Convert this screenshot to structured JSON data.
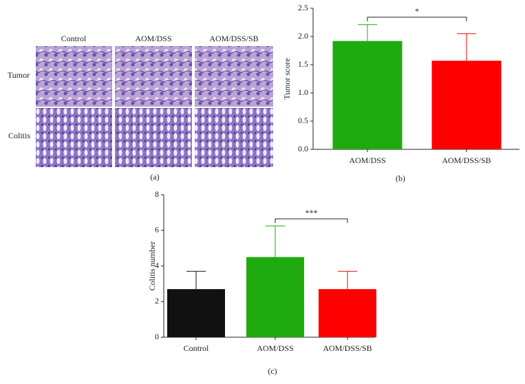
{
  "panel_a": {
    "column_labels": [
      "Control",
      "AOM/DSS",
      "AOM/DSS/SB"
    ],
    "row_labels": [
      "Tumor",
      "Colitis"
    ],
    "caption": "(a)"
  },
  "chart_data": [
    {
      "type": "bar",
      "caption": "(b)",
      "ylabel": "Tumor score",
      "categories": [
        "AOM/DSS",
        "AOM/DSS/SB"
      ],
      "values": [
        1.92,
        1.57
      ],
      "errors": [
        0.29,
        0.48
      ],
      "colors": [
        "#1fab0f",
        "#ff0000"
      ],
      "ylim": [
        0,
        2.5
      ],
      "yticks": [
        {
          "value": 0,
          "label": "0.0"
        },
        {
          "value": 0.5,
          "label": "0.5"
        },
        {
          "value": 1,
          "label": "1.0"
        },
        {
          "value": 1.5,
          "label": "1.5"
        },
        {
          "value": 2,
          "label": "2.0"
        },
        {
          "value": 2.5,
          "label": "2.5"
        }
      ],
      "annotation": "*"
    },
    {
      "type": "bar",
      "caption": "(c)",
      "ylabel": "Colitis number",
      "categories": [
        "Control",
        "AOM/DSS",
        "AOM/DSS/SB"
      ],
      "values": [
        2.7,
        4.5,
        2.7
      ],
      "errors": [
        1.0,
        1.75,
        1.0
      ],
      "colors": [
        "#111111",
        "#1fab0f",
        "#ff0000"
      ],
      "ylim": [
        0,
        8
      ],
      "yticks": [
        0,
        2,
        4,
        6,
        8
      ],
      "annotation": "***"
    }
  ]
}
